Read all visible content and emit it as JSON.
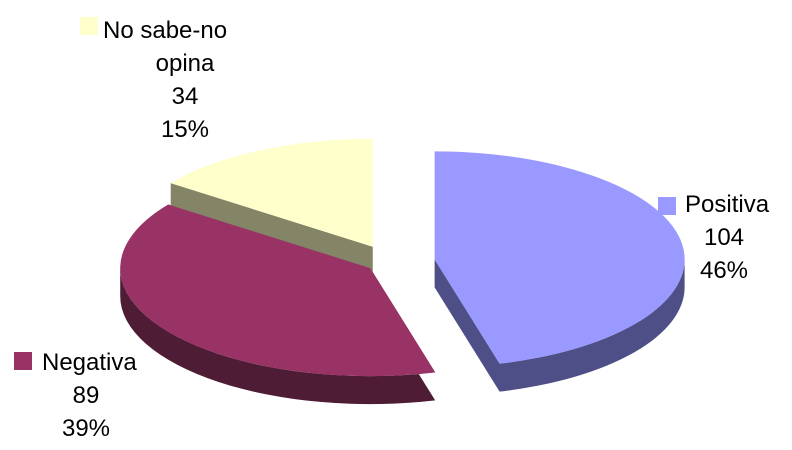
{
  "chart_data": {
    "type": "pie",
    "three_d": true,
    "exploded": true,
    "title": "",
    "series": [
      {
        "slices": [
          {
            "name": "Positiva",
            "value": 104,
            "percent": "46%",
            "color": "#9999ff",
            "side_color": "#4f4f87"
          },
          {
            "name": "Negativa",
            "value": 89,
            "percent": "39%",
            "color": "#993366",
            "side_color": "#4f1c35"
          },
          {
            "name": "No sabe-no opina",
            "name_lines": [
              "No sabe-no",
              "opina"
            ],
            "value": 34,
            "percent": "15%",
            "color": "#ffffcc",
            "side_color": "#848466"
          }
        ]
      }
    ],
    "labels": [
      {
        "slice": 0,
        "lines": [
          "Positiva",
          "104",
          "46%"
        ]
      },
      {
        "slice": 1,
        "lines": [
          "Negativa",
          "89",
          "39%"
        ]
      },
      {
        "slice": 2,
        "lines": [
          "No sabe-no",
          "opina",
          "34",
          "15%"
        ]
      }
    ]
  }
}
